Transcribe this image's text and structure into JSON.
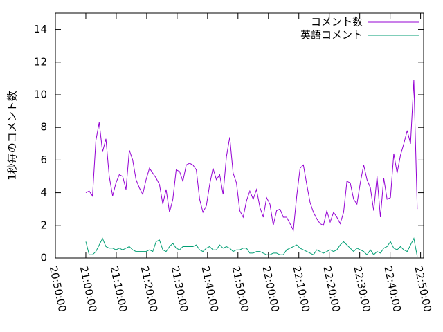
{
  "chart_data": {
    "type": "line",
    "ylabel": "1秒毎のコメント数",
    "x": [
      "21:00:00",
      "21:01:06",
      "21:02:12",
      "21:03:18",
      "21:04:24",
      "21:05:30",
      "21:06:36",
      "21:07:42",
      "21:08:48",
      "21:09:54",
      "21:11:00",
      "21:12:06",
      "21:13:12",
      "21:14:18",
      "21:15:24",
      "21:16:30",
      "21:17:36",
      "21:18:42",
      "21:19:48",
      "21:20:54",
      "21:22:00",
      "21:23:06",
      "21:24:12",
      "21:25:18",
      "21:26:24",
      "21:27:30",
      "21:28:36",
      "21:29:42",
      "21:30:48",
      "21:31:54",
      "21:33:00",
      "21:34:06",
      "21:35:12",
      "21:36:18",
      "21:37:24",
      "21:38:30",
      "21:39:36",
      "21:40:42",
      "21:41:48",
      "21:42:54",
      "21:44:00",
      "21:45:06",
      "21:46:12",
      "21:47:18",
      "21:48:24",
      "21:49:30",
      "21:50:36",
      "21:51:42",
      "21:52:48",
      "21:53:54",
      "21:55:00",
      "21:56:06",
      "21:57:12",
      "21:58:18",
      "21:59:24",
      "22:00:30",
      "22:01:36",
      "22:02:42",
      "22:03:48",
      "22:04:54",
      "22:06:00",
      "22:07:06",
      "22:08:12",
      "22:09:18",
      "22:10:24",
      "22:11:30",
      "22:12:36",
      "22:13:42",
      "22:14:48",
      "22:15:54",
      "22:17:00",
      "22:18:06",
      "22:19:12",
      "22:20:18",
      "22:21:24",
      "22:22:30",
      "22:23:36",
      "22:24:42",
      "22:25:48",
      "22:26:54",
      "22:28:00",
      "22:29:06",
      "22:30:12",
      "22:31:18",
      "22:32:24",
      "22:33:30",
      "22:34:36",
      "22:35:42",
      "22:36:48",
      "22:37:54",
      "22:39:00",
      "22:40:06",
      "22:41:12",
      "22:42:18",
      "22:43:24",
      "22:44:30",
      "22:45:36",
      "22:46:42",
      "22:47:48",
      "22:48:54"
    ],
    "series": [
      {
        "name": "コメント数",
        "color": "#9400d3",
        "values": [
          4.0,
          4.1,
          3.8,
          7.2,
          8.3,
          6.5,
          7.3,
          5.0,
          3.8,
          4.6,
          5.1,
          5.0,
          4.2,
          6.6,
          6.0,
          4.8,
          4.3,
          3.9,
          4.8,
          5.5,
          5.2,
          4.9,
          4.5,
          3.3,
          4.2,
          2.8,
          3.6,
          5.4,
          5.3,
          4.7,
          5.7,
          5.8,
          5.7,
          5.4,
          3.6,
          2.8,
          3.2,
          4.5,
          5.5,
          4.8,
          5.1,
          3.9,
          6.2,
          7.4,
          5.2,
          4.6,
          2.9,
          2.5,
          3.5,
          4.1,
          3.6,
          4.2,
          3.1,
          2.5,
          3.7,
          3.3,
          2.0,
          2.9,
          3.0,
          2.5,
          2.5,
          2.1,
          1.7,
          3.8,
          5.5,
          5.7,
          4.5,
          3.4,
          2.8,
          2.4,
          2.1,
          2.0,
          2.9,
          2.2,
          2.8,
          2.5,
          2.1,
          2.8,
          4.7,
          4.6,
          3.6,
          3.3,
          4.6,
          5.7,
          4.8,
          4.3,
          2.9,
          5.0,
          2.5,
          4.9,
          3.6,
          3.7,
          6.4,
          5.2,
          6.3,
          7.0,
          7.8,
          7.0,
          10.9,
          3.0
        ]
      },
      {
        "name": "英語コメント",
        "color": "#009e73",
        "values": [
          1.0,
          0.2,
          0.2,
          0.4,
          0.8,
          1.2,
          0.7,
          0.6,
          0.6,
          0.5,
          0.6,
          0.5,
          0.6,
          0.7,
          0.5,
          0.4,
          0.4,
          0.4,
          0.4,
          0.5,
          0.4,
          1.0,
          1.1,
          0.5,
          0.4,
          0.7,
          0.9,
          0.6,
          0.5,
          0.7,
          0.7,
          0.7,
          0.7,
          0.8,
          0.5,
          0.4,
          0.6,
          0.7,
          0.5,
          0.5,
          0.8,
          0.6,
          0.7,
          0.6,
          0.4,
          0.5,
          0.5,
          0.6,
          0.6,
          0.3,
          0.3,
          0.4,
          0.4,
          0.3,
          0.2,
          0.2,
          0.3,
          0.3,
          0.2,
          0.2,
          0.5,
          0.6,
          0.7,
          0.8,
          0.6,
          0.5,
          0.4,
          0.3,
          0.2,
          0.5,
          0.4,
          0.3,
          0.4,
          0.5,
          0.4,
          0.5,
          0.8,
          1.0,
          0.8,
          0.6,
          0.4,
          0.6,
          0.5,
          0.4,
          0.2,
          0.5,
          0.2,
          0.4,
          0.3,
          0.6,
          0.7,
          1.0,
          0.6,
          0.5,
          0.7,
          0.5,
          0.4,
          0.8,
          1.2,
          0.1
        ]
      }
    ],
    "xlim": [
      "20:50:00",
      "22:51:00"
    ],
    "xticks": [
      "20:50:00",
      "21:00:00",
      "21:10:00",
      "21:20:00",
      "21:30:00",
      "21:40:00",
      "21:50:00",
      "22:00:00",
      "22:10:00",
      "22:20:00",
      "22:30:00",
      "22:40:00",
      "22:50:00"
    ],
    "ylim": [
      0,
      15
    ],
    "yticks": [
      0,
      2,
      4,
      6,
      8,
      10,
      12,
      14
    ],
    "legend": "top-right"
  }
}
